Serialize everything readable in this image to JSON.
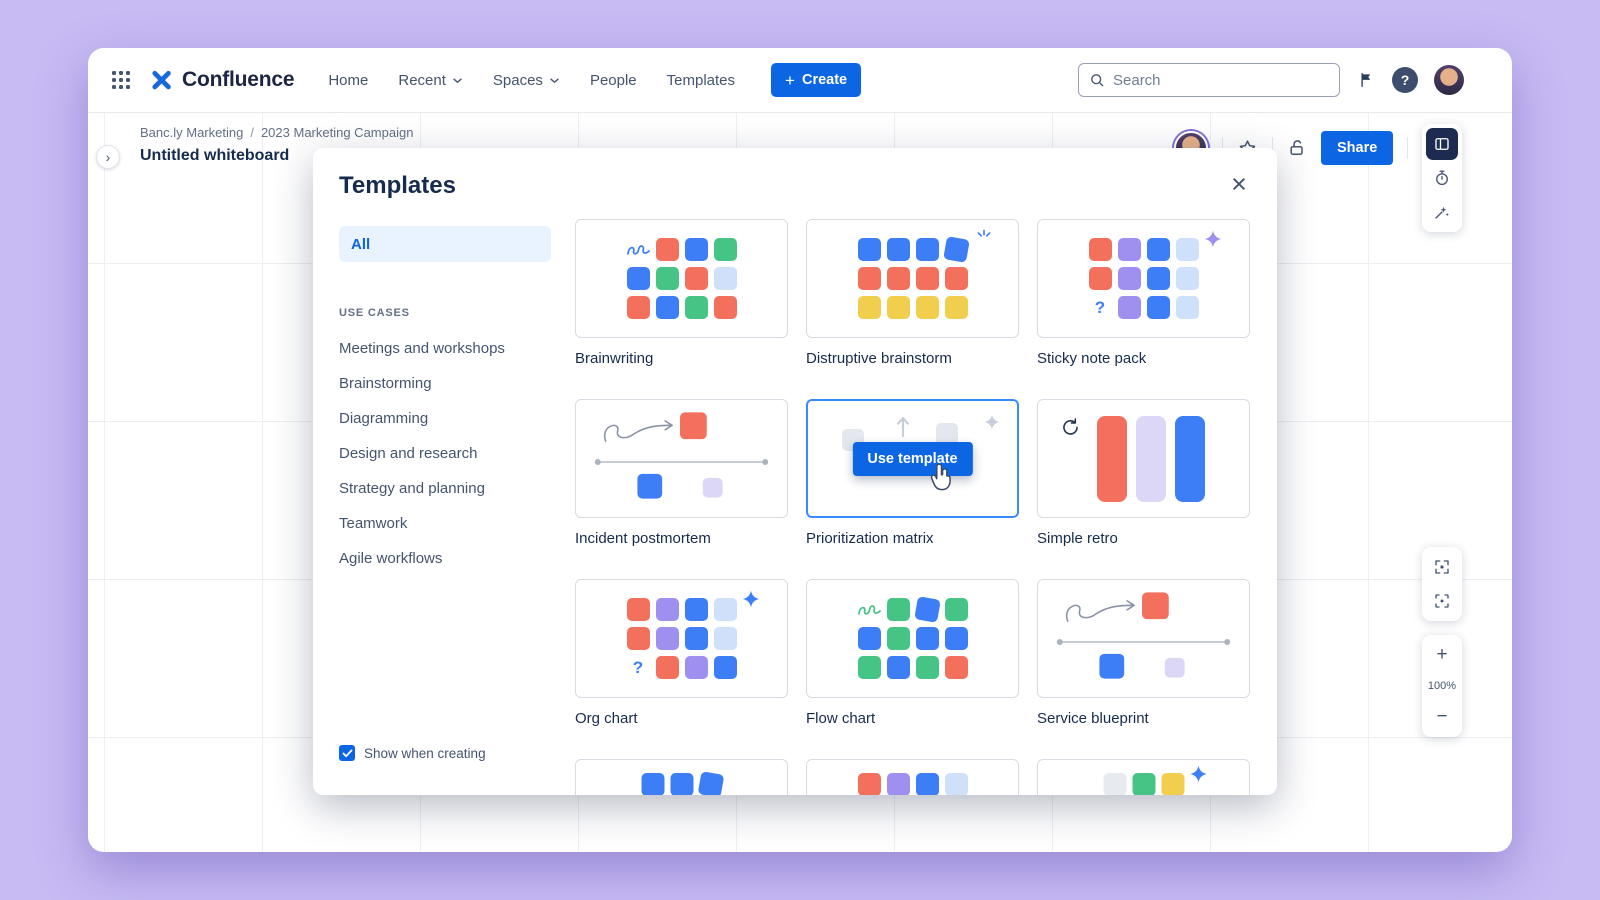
{
  "palette": {
    "orange": "#F2705C",
    "blue": "#3D7DF6",
    "green": "#45C486",
    "yellow": "#F2CE4F",
    "purple": "#9F8FEF",
    "lightblue": "#CFE0FB",
    "lavender": "#DCD6F7",
    "gray": "#E7EAEF",
    "accent_blue": "#0C66E4",
    "hover_border": "#388BFF"
  },
  "topbar": {
    "brand": "Confluence",
    "nav_items": [
      {
        "label": "Home",
        "chevron": false
      },
      {
        "label": "Recent",
        "chevron": true
      },
      {
        "label": "Spaces",
        "chevron": true
      },
      {
        "label": "People",
        "chevron": false
      },
      {
        "label": "Templates",
        "chevron": false
      }
    ],
    "create_label": "Create",
    "search_placeholder": "Search"
  },
  "board": {
    "breadcrumbs": [
      "Banc.ly Marketing",
      "2023 Marketing Campaign"
    ],
    "title": "Untitled whiteboard",
    "share_label": "Share",
    "zoom_level": "100%"
  },
  "templates_modal": {
    "title": "Templates",
    "all_filter": "All",
    "use_cases_heading": "USE CASES",
    "use_cases": [
      "Meetings and workshops",
      "Brainstorming",
      "Diagramming",
      "Design and research",
      "Strategy and planning",
      "Teamwork",
      "Agile workflows"
    ],
    "show_when_creating_label": "Show when creating",
    "show_when_creating_checked": true,
    "use_template_label": "Use template",
    "cards": [
      {
        "label": "Brainwriting",
        "type": "grid",
        "rows": [
          [
            "scribble-blue",
            "orange",
            "blue",
            "green"
          ],
          [
            "blue",
            "green",
            "orange",
            "lightblue"
          ],
          [
            "orange",
            "blue",
            "green",
            "orange"
          ]
        ]
      },
      {
        "label": "Distruptive brainstorm",
        "type": "grid",
        "rows": [
          [
            "blue",
            "blue",
            "blue",
            "tilt"
          ],
          [
            "orange",
            "orange",
            "orange",
            "orange"
          ],
          [
            "yellow",
            "yellow",
            "yellow",
            "yellow"
          ]
        ],
        "deco": {
          "type": "burst",
          "color": "blue"
        }
      },
      {
        "label": "Sticky note pack",
        "type": "grid",
        "rows": [
          [
            "orange",
            "purple",
            "blue",
            "lightblue"
          ],
          [
            "orange",
            "purple",
            "blue",
            "lightblue"
          ],
          [
            "question",
            "purple",
            "blue",
            "lightblue"
          ]
        ],
        "deco": {
          "type": "sparkle",
          "color": "purple"
        }
      },
      {
        "label": "Incident postmortem",
        "type": "timeline"
      },
      {
        "label": "Prioritization matrix",
        "type": "hover",
        "selected": true
      },
      {
        "label": "Simple retro",
        "type": "retro",
        "bars": [
          "orange",
          "lavender",
          "blue"
        ]
      },
      {
        "label": "Org chart",
        "type": "grid",
        "rows": [
          [
            "orange",
            "purple",
            "blue",
            "lightblue"
          ],
          [
            "orange",
            "purple",
            "blue",
            "lightblue"
          ],
          [
            "question",
            "orange",
            "purple",
            "blue"
          ]
        ],
        "deco": {
          "type": "sparkle",
          "color": "blue"
        }
      },
      {
        "label": "Flow chart",
        "type": "grid",
        "rows": [
          [
            "scribble-green",
            "green",
            "tilt",
            "green"
          ],
          [
            "blue",
            "green",
            "blue",
            "blue"
          ],
          [
            "green",
            "blue",
            "green",
            "orange"
          ]
        ]
      },
      {
        "label": "Service blueprint",
        "type": "timeline"
      },
      {
        "label": "",
        "type": "grid",
        "rows": [
          [
            "blue",
            "blue",
            "tilt"
          ]
        ]
      },
      {
        "label": "",
        "type": "grid",
        "rows": [
          [
            "orange",
            "purple",
            "blue",
            "lightblue"
          ]
        ]
      },
      {
        "label": "",
        "type": "grid",
        "rows": [
          [
            "gray",
            "green",
            "yellow"
          ]
        ],
        "deco": {
          "type": "sparkle",
          "color": "blue"
        }
      }
    ]
  }
}
